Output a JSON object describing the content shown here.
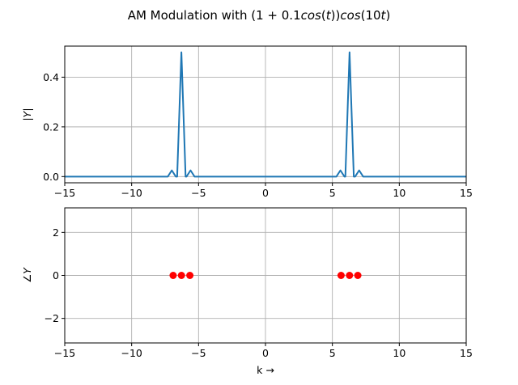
{
  "figure": {
    "title_prefix": "AM Modulation with ",
    "title_math_parts": [
      "(1 + 0.1",
      "cos",
      "(",
      "t",
      "))",
      "cos",
      "(10",
      "t",
      ")"
    ]
  },
  "chart_data": [
    {
      "type": "line",
      "name": "magnitude",
      "ylabel": "|Y|",
      "xlim": [
        -15,
        15
      ],
      "ylim": [
        -0.025,
        0.525
      ],
      "xticks": [
        -15,
        -10,
        -5,
        0,
        5,
        10,
        15
      ],
      "xtick_labels": [
        "−15",
        "−10",
        "−5",
        "0",
        "5",
        "10",
        "15"
      ],
      "yticks": [
        0.0,
        0.2,
        0.4
      ],
      "ytick_labels": [
        "0.0",
        "0.2",
        "0.4"
      ],
      "grid": true,
      "color": "#1f77b4",
      "x": [
        -15,
        -7.3,
        -7.0,
        -6.7,
        -6.6,
        -6.283,
        -5.97,
        -5.9,
        -5.6,
        -5.3,
        5.3,
        5.6,
        5.9,
        5.97,
        6.283,
        6.6,
        6.7,
        7.0,
        7.3,
        15
      ],
      "y": [
        0,
        0,
        0.025,
        0,
        0,
        0.5,
        0,
        0,
        0.025,
        0,
        0,
        0.025,
        0,
        0,
        0.5,
        0,
        0,
        0.025,
        0,
        0
      ]
    },
    {
      "type": "scatter",
      "name": "phase",
      "ylabel": "∠Y",
      "xlabel": "k →",
      "xlim": [
        -15,
        15
      ],
      "ylim": [
        -3.1416,
        3.1416
      ],
      "xticks": [
        -15,
        -10,
        -5,
        0,
        5,
        10,
        15
      ],
      "xtick_labels": [
        "−15",
        "−10",
        "−5",
        "0",
        "5",
        "10",
        "15"
      ],
      "yticks": [
        -2,
        0,
        2
      ],
      "ytick_labels": [
        "−2",
        "0",
        "2"
      ],
      "grid": true,
      "color": "#ff0000",
      "x": [
        -6.9,
        -6.28,
        -5.65,
        5.65,
        6.28,
        6.9
      ],
      "y": [
        0,
        0,
        0,
        0,
        0,
        0
      ]
    }
  ]
}
